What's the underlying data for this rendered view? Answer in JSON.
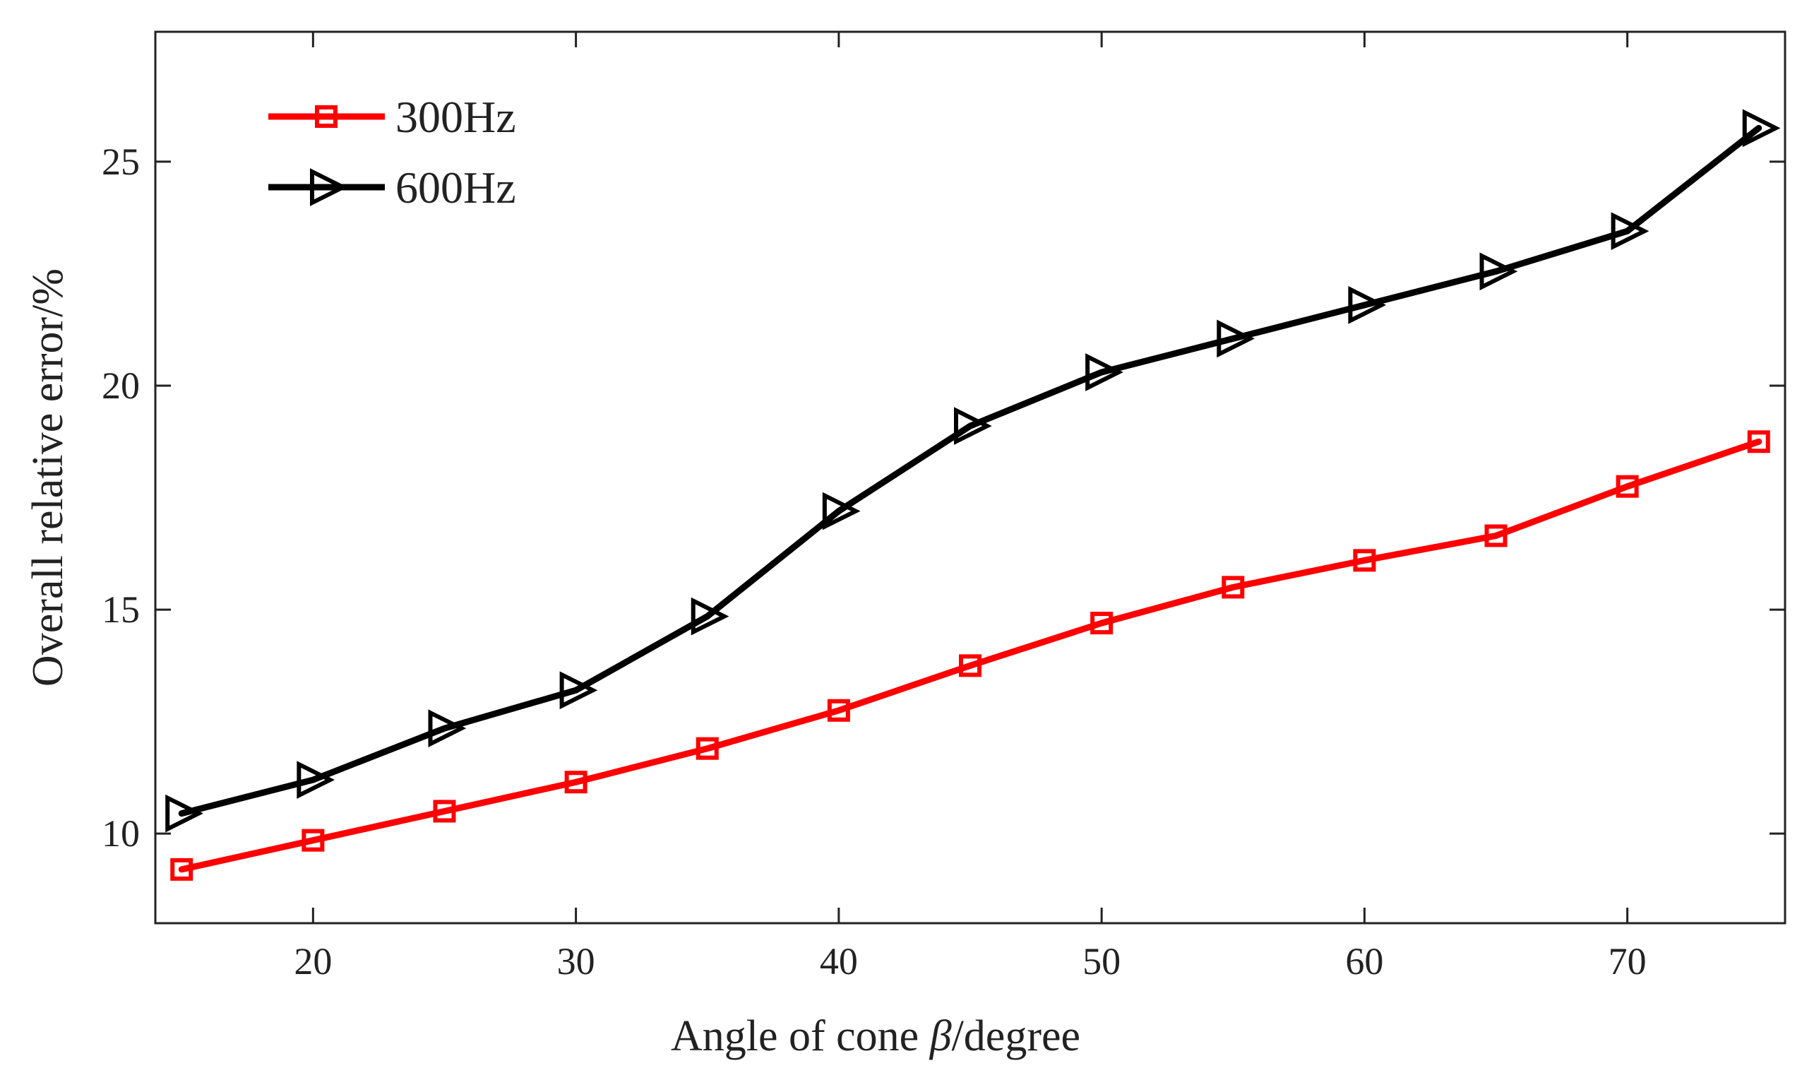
{
  "chart_data": {
    "type": "line",
    "title": "",
    "xlabel_prefix": "Angle of cone ",
    "xlabel_symbol": "β",
    "xlabel_suffix": "/degree",
    "ylabel": "Overall relative error/%",
    "xlim": [
      14,
      76
    ],
    "ylim": [
      8,
      27.9
    ],
    "x_ticks": [
      20,
      30,
      40,
      50,
      60,
      70
    ],
    "y_ticks": [
      10,
      15,
      20,
      25
    ],
    "grid": false,
    "legend_position": "top-left",
    "x": [
      15,
      20,
      25,
      30,
      35,
      40,
      45,
      50,
      55,
      60,
      65,
      70,
      75
    ],
    "series": [
      {
        "name": "300Hz",
        "color": "#ff0000",
        "marker": "square",
        "values": [
          9.2,
          9.85,
          10.5,
          11.15,
          11.9,
          12.75,
          13.75,
          14.7,
          15.5,
          16.1,
          16.65,
          17.75,
          18.75
        ]
      },
      {
        "name": "600Hz",
        "color": "#000000",
        "marker": "triangle-right",
        "values": [
          10.45,
          11.2,
          12.35,
          13.2,
          14.85,
          17.2,
          19.1,
          20.3,
          21.05,
          21.8,
          22.55,
          23.45,
          25.75
        ]
      }
    ]
  }
}
